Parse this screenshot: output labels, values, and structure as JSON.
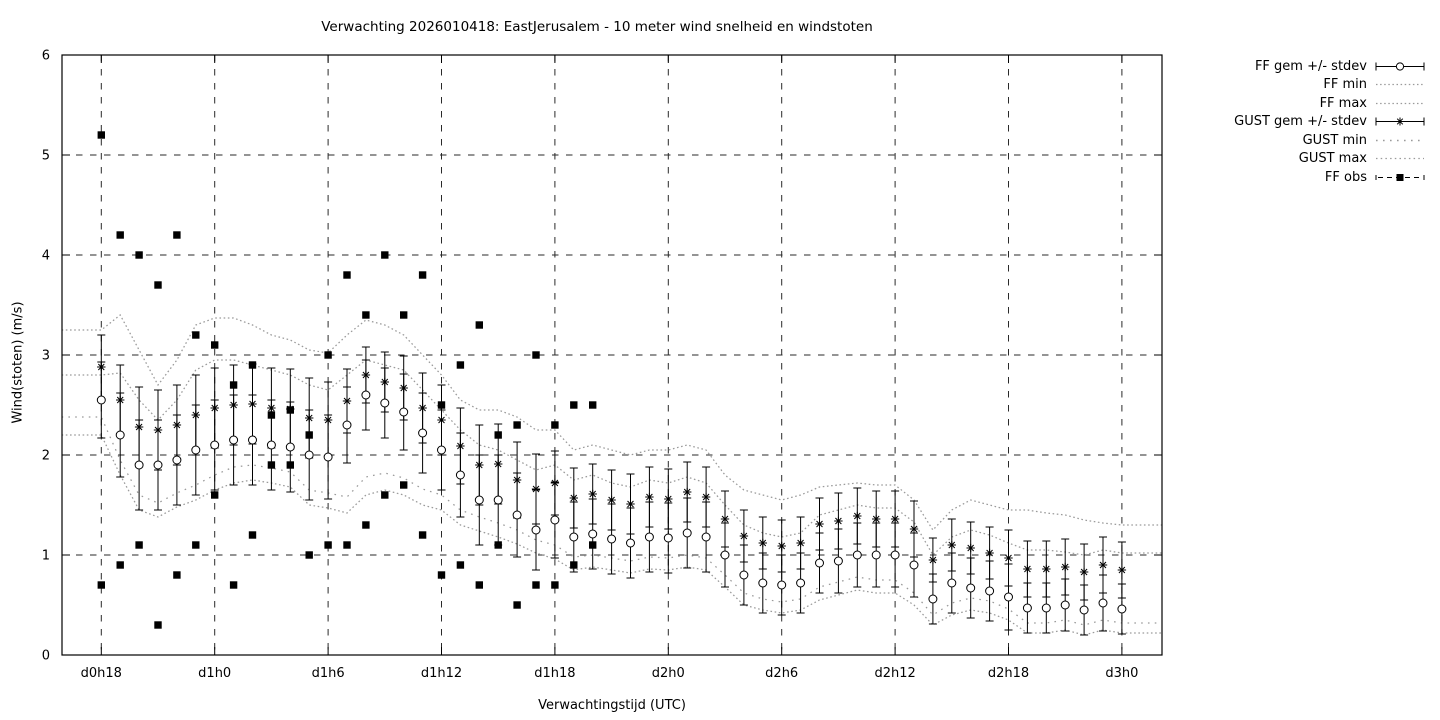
{
  "title": "Verwachting 2026010418: EastJerusalem - 10 meter wind snelheid en windstoten",
  "axes": {
    "xlabel": "Verwachtingstijd (UTC)",
    "ylabel": "Wind(stoten) (m/s)",
    "yticks": [
      "0",
      "1",
      "2",
      "3",
      "4",
      "5",
      "6"
    ],
    "xtick_labels": [
      "d0h18",
      "d1h0",
      "d1h6",
      "d1h12",
      "d1h18",
      "d2h0",
      "d2h6",
      "d2h12",
      "d2h18",
      "d3h0"
    ]
  },
  "colors": {
    "series": "#000000",
    "envelope": "#9a9a9a",
    "grid": "#2a2a2a",
    "background": "#ffffff"
  },
  "chart_data": {
    "type": "line",
    "title": "Verwachting 2026010418: EastJerusalem - 10 meter wind snelheid en windstoten",
    "xlabel": "Verwachtingstijd (UTC)",
    "ylabel": "Wind(stoten) (m/s)",
    "ylim": [
      0,
      6
    ],
    "x_unit": "hours since d0h18, hourly steps",
    "x_hours_range": [
      0,
      54
    ],
    "xtick_labels": [
      "d0h18",
      "d1h0",
      "d1h6",
      "d1h12",
      "d1h18",
      "d2h0",
      "d2h6",
      "d2h12",
      "d2h18",
      "d3h0"
    ],
    "xtick_hours": [
      0,
      6,
      12,
      18,
      24,
      30,
      36,
      42,
      48,
      54
    ],
    "grid": true,
    "legend_position": "outside-top-right",
    "series": [
      {
        "name": "FF gem +/- stdev",
        "marker": "circle",
        "style": "errorbars",
        "values": [
          2.55,
          2.2,
          1.9,
          1.9,
          1.95,
          2.05,
          2.1,
          2.15,
          2.15,
          2.1,
          2.08,
          2.0,
          1.98,
          2.3,
          2.6,
          2.52,
          2.43,
          2.22,
          2.05,
          1.8,
          1.55,
          1.55,
          1.4,
          1.25,
          1.35,
          1.18,
          1.21,
          1.16,
          1.12,
          1.18,
          1.17,
          1.22,
          1.18,
          1.0,
          0.8,
          0.72,
          0.7,
          0.72,
          0.92,
          0.94,
          1.0,
          1.0,
          1.0,
          0.9,
          0.56,
          0.72,
          0.67,
          0.64,
          0.58,
          0.47,
          0.47,
          0.5,
          0.45,
          0.52,
          0.46
        ],
        "stdev": [
          0.38,
          0.42,
          0.45,
          0.45,
          0.45,
          0.45,
          0.45,
          0.45,
          0.45,
          0.45,
          0.45,
          0.45,
          0.42,
          0.38,
          0.35,
          0.35,
          0.38,
          0.4,
          0.4,
          0.42,
          0.45,
          0.45,
          0.42,
          0.4,
          0.38,
          0.35,
          0.35,
          0.35,
          0.35,
          0.35,
          0.35,
          0.35,
          0.35,
          0.32,
          0.3,
          0.3,
          0.3,
          0.3,
          0.3,
          0.32,
          0.32,
          0.32,
          0.32,
          0.32,
          0.25,
          0.3,
          0.3,
          0.3,
          0.33,
          0.25,
          0.25,
          0.26,
          0.25,
          0.28,
          0.25
        ]
      },
      {
        "name": "FF min",
        "style": "dotted",
        "values": [
          2.2,
          1.8,
          1.45,
          1.38,
          1.48,
          1.55,
          1.65,
          1.72,
          1.75,
          1.72,
          1.68,
          1.5,
          1.47,
          1.42,
          1.6,
          1.65,
          1.6,
          1.5,
          1.45,
          1.3,
          1.24,
          1.18,
          1.11,
          1.02,
          0.96,
          0.85,
          0.88,
          0.85,
          0.82,
          0.86,
          0.85,
          0.88,
          0.85,
          0.68,
          0.5,
          0.45,
          0.42,
          0.45,
          0.55,
          0.6,
          0.65,
          0.62,
          0.62,
          0.5,
          0.3,
          0.4,
          0.45,
          0.42,
          0.35,
          0.22,
          0.22,
          0.25,
          0.2,
          0.25,
          0.22
        ]
      },
      {
        "name": "FF max",
        "style": "dotted",
        "values": [
          2.8,
          2.82,
          2.55,
          2.35,
          2.55,
          2.85,
          2.95,
          2.95,
          2.9,
          2.85,
          2.8,
          2.7,
          2.65,
          2.8,
          2.95,
          2.9,
          2.85,
          2.65,
          2.45,
          2.25,
          2.1,
          2.05,
          1.95,
          1.85,
          1.9,
          1.75,
          1.8,
          1.72,
          1.68,
          1.75,
          1.72,
          1.78,
          1.72,
          1.5,
          1.3,
          1.22,
          1.18,
          1.22,
          1.4,
          1.45,
          1.5,
          1.47,
          1.47,
          1.33,
          1.0,
          1.18,
          1.25,
          1.2,
          1.12,
          1.05,
          1.05,
          1.03,
          1.0,
          1.05,
          1.02
        ]
      },
      {
        "name": "GUST gem +/- stdev",
        "marker": "asterisk",
        "style": "errorbars",
        "values": [
          2.88,
          2.55,
          2.28,
          2.25,
          2.3,
          2.4,
          2.47,
          2.5,
          2.51,
          2.47,
          2.46,
          2.37,
          2.35,
          2.54,
          2.8,
          2.73,
          2.67,
          2.47,
          2.35,
          2.09,
          1.9,
          1.91,
          1.75,
          1.66,
          1.72,
          1.57,
          1.61,
          1.55,
          1.51,
          1.58,
          1.56,
          1.63,
          1.58,
          1.36,
          1.19,
          1.12,
          1.09,
          1.12,
          1.31,
          1.34,
          1.39,
          1.36,
          1.36,
          1.26,
          0.95,
          1.1,
          1.07,
          1.02,
          0.97,
          0.86,
          0.86,
          0.88,
          0.83,
          0.9,
          0.85
        ],
        "stdev": [
          0.32,
          0.35,
          0.4,
          0.4,
          0.4,
          0.4,
          0.4,
          0.4,
          0.4,
          0.4,
          0.4,
          0.4,
          0.38,
          0.32,
          0.28,
          0.3,
          0.32,
          0.35,
          0.35,
          0.38,
          0.4,
          0.4,
          0.38,
          0.35,
          0.32,
          0.3,
          0.3,
          0.3,
          0.3,
          0.3,
          0.3,
          0.3,
          0.3,
          0.28,
          0.26,
          0.26,
          0.26,
          0.26,
          0.26,
          0.28,
          0.28,
          0.28,
          0.28,
          0.28,
          0.22,
          0.26,
          0.26,
          0.26,
          0.28,
          0.28,
          0.28,
          0.28,
          0.28,
          0.28,
          0.28
        ]
      },
      {
        "name": "GUST min",
        "style": "dotted-sparse",
        "values": [
          2.38,
          1.95,
          1.6,
          1.52,
          1.62,
          1.7,
          1.8,
          1.88,
          1.9,
          1.87,
          1.83,
          1.65,
          1.62,
          1.58,
          1.78,
          1.82,
          1.77,
          1.66,
          1.6,
          1.45,
          1.38,
          1.32,
          1.25,
          1.15,
          1.1,
          0.98,
          1.0,
          0.97,
          0.94,
          0.98,
          0.97,
          1.0,
          0.97,
          0.8,
          0.62,
          0.56,
          0.53,
          0.56,
          0.68,
          0.73,
          0.78,
          0.75,
          0.75,
          0.62,
          0.4,
          0.52,
          0.57,
          0.54,
          0.46,
          0.32,
          0.32,
          0.35,
          0.3,
          0.35,
          0.32
        ]
      },
      {
        "name": "GUST max",
        "style": "dotted",
        "values": [
          3.25,
          3.4,
          3.05,
          2.7,
          2.95,
          3.3,
          3.37,
          3.37,
          3.3,
          3.2,
          3.15,
          3.05,
          3.02,
          3.2,
          3.35,
          3.3,
          3.2,
          3.0,
          2.8,
          2.55,
          2.45,
          2.45,
          2.38,
          2.25,
          2.25,
          2.05,
          2.1,
          2.05,
          2.0,
          2.05,
          2.05,
          2.1,
          2.05,
          1.8,
          1.65,
          1.6,
          1.55,
          1.6,
          1.68,
          1.7,
          1.72,
          1.7,
          1.7,
          1.55,
          1.25,
          1.45,
          1.55,
          1.5,
          1.45,
          1.45,
          1.42,
          1.4,
          1.35,
          1.32,
          1.3
        ]
      },
      {
        "name": "FF obs",
        "marker": "square",
        "style": "points",
        "points": [
          [
            0,
            5.2
          ],
          [
            0,
            0.7
          ],
          [
            1,
            4.2
          ],
          [
            1,
            0.9
          ],
          [
            2,
            4.0
          ],
          [
            2,
            1.1
          ],
          [
            3,
            3.7
          ],
          [
            3,
            0.3
          ],
          [
            4,
            4.2
          ],
          [
            4,
            0.8
          ],
          [
            5,
            3.2
          ],
          [
            5,
            1.1
          ],
          [
            6,
            3.1
          ],
          [
            6,
            1.6
          ],
          [
            7,
            2.7
          ],
          [
            7,
            0.7
          ],
          [
            8,
            2.9
          ],
          [
            8,
            1.2
          ],
          [
            9,
            2.4
          ],
          [
            9,
            1.9
          ],
          [
            10,
            2.45
          ],
          [
            10,
            1.9
          ],
          [
            11,
            2.2
          ],
          [
            11,
            1.0
          ],
          [
            12,
            3.0
          ],
          [
            12,
            1.1
          ],
          [
            13,
            3.8
          ],
          [
            13,
            1.1
          ],
          [
            14,
            3.4
          ],
          [
            14,
            1.3
          ],
          [
            15,
            4.0
          ],
          [
            15,
            1.6
          ],
          [
            16,
            3.4
          ],
          [
            16,
            1.7
          ],
          [
            17,
            3.8
          ],
          [
            17,
            1.2
          ],
          [
            18,
            2.5
          ],
          [
            18,
            0.8
          ],
          [
            19,
            2.9
          ],
          [
            19,
            0.9
          ],
          [
            20,
            3.3
          ],
          [
            20,
            0.7
          ],
          [
            21,
            2.2
          ],
          [
            21,
            1.1
          ],
          [
            22,
            2.3
          ],
          [
            22,
            0.5
          ],
          [
            23,
            3.0
          ],
          [
            23,
            0.7
          ],
          [
            24,
            2.3
          ],
          [
            24,
            0.7
          ],
          [
            25,
            2.5
          ],
          [
            25,
            0.9
          ],
          [
            26,
            2.5
          ],
          [
            26,
            1.1
          ]
        ]
      }
    ]
  }
}
